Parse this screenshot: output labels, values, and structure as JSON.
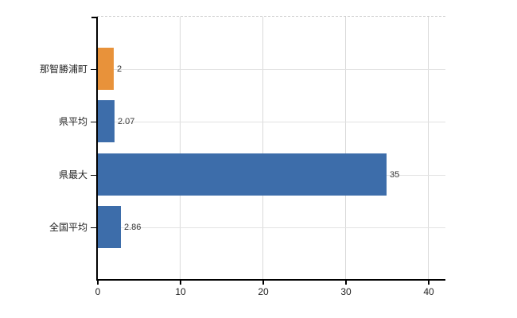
{
  "chart_data": {
    "type": "bar",
    "orientation": "horizontal",
    "title": "",
    "xlabel": "",
    "ylabel": "",
    "categories": [
      "那智勝浦町",
      "県平均",
      "県最大",
      "全国平均"
    ],
    "values": [
      2,
      2.07,
      35,
      2.86
    ],
    "value_labels": [
      "2",
      "2.07",
      "35",
      "2.86"
    ],
    "bar_colors": [
      "#E8923A",
      "#3D6DAA",
      "#3D6DAA",
      "#3D6DAA"
    ],
    "xlim": [
      0,
      40
    ],
    "x_ticks": [
      "0",
      "10",
      "20",
      "30",
      "40"
    ],
    "x_tick_values": [
      0,
      10,
      20,
      30,
      40
    ],
    "grid": "on",
    "legend": "none",
    "colors": {
      "highlight_orange": "#E8923A",
      "series_blue": "#3D6DAA",
      "axis": "#000000",
      "gridline": "#D9D9D9",
      "row_gridline": "#E2E2E2",
      "top_border": "#CCCCCC",
      "text": "#222222",
      "value_text": "#333333"
    }
  }
}
